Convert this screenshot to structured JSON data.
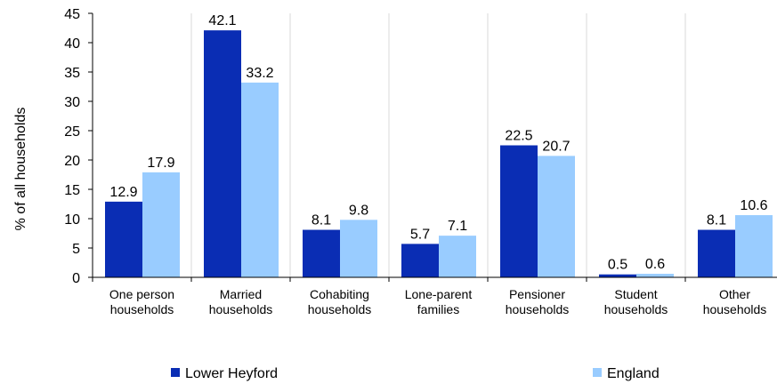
{
  "chart_data": {
    "type": "bar",
    "title": "",
    "xlabel": "",
    "ylabel": "% of all households",
    "ylim": [
      0,
      45
    ],
    "yticks": [
      0,
      5,
      10,
      15,
      20,
      25,
      30,
      35,
      40,
      45
    ],
    "grid": "vertical-category-separators",
    "legend_position": "bottom",
    "categories": [
      [
        "One person",
        "households"
      ],
      [
        "Married",
        "households"
      ],
      [
        "Cohabiting",
        "households"
      ],
      [
        "Lone-parent",
        "families"
      ],
      [
        "Pensioner",
        "households"
      ],
      [
        "Student",
        "households"
      ],
      [
        "Other",
        "households"
      ]
    ],
    "series": [
      {
        "name": "Lower Heyford",
        "color": "#0a2db4",
        "values": [
          12.9,
          42.1,
          8.1,
          5.7,
          22.5,
          0.5,
          8.1
        ]
      },
      {
        "name": "England",
        "color": "#99ccff",
        "values": [
          17.9,
          33.2,
          9.8,
          7.1,
          20.7,
          0.6,
          10.6
        ]
      }
    ]
  }
}
